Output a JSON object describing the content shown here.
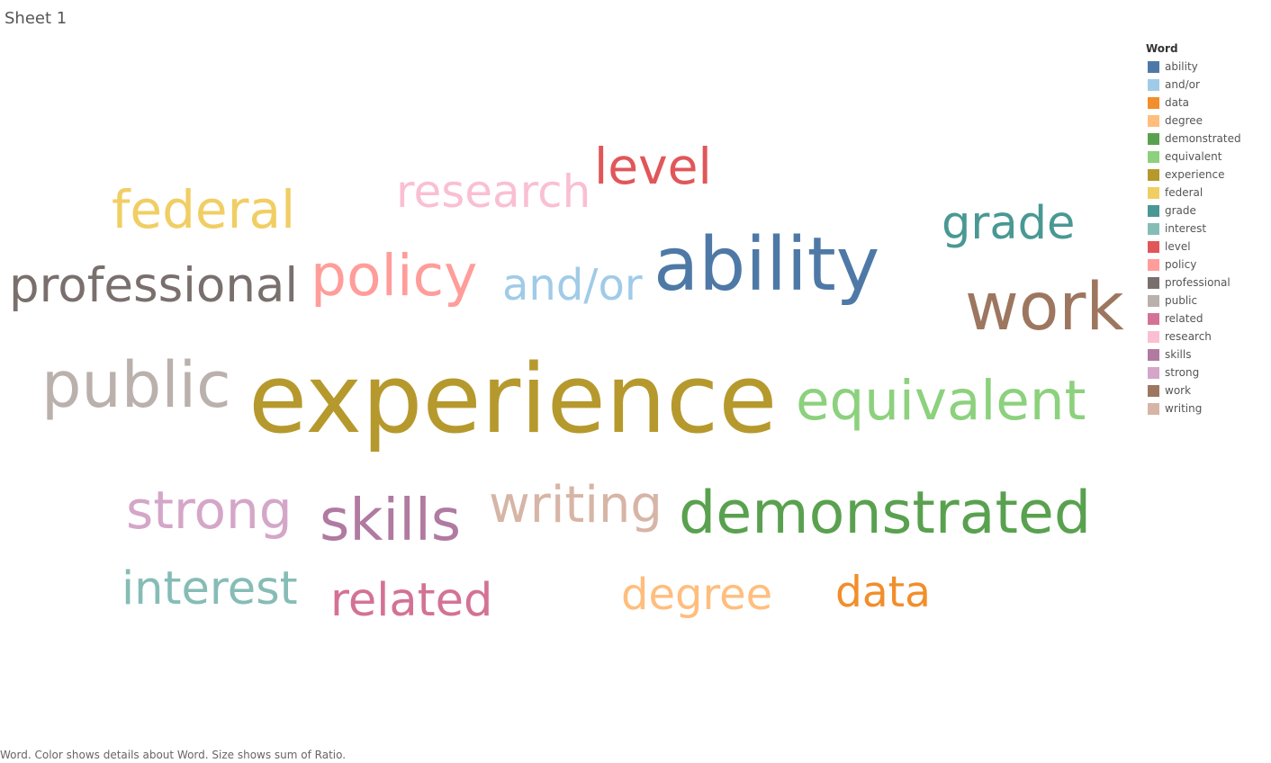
{
  "sheet": {
    "title": "Sheet 1",
    "footer": "Word.  Color shows details about Word.  Size shows sum of Ratio."
  },
  "legend": {
    "title": "Word",
    "items": [
      {
        "label": "ability",
        "color": "#4e79a7"
      },
      {
        "label": "and/or",
        "color": "#a0cbe8"
      },
      {
        "label": "data",
        "color": "#f28e2b"
      },
      {
        "label": "degree",
        "color": "#ffbe7d"
      },
      {
        "label": "demonstrated",
        "color": "#59a14f"
      },
      {
        "label": "equivalent",
        "color": "#8cd17d"
      },
      {
        "label": "experience",
        "color": "#b6992d"
      },
      {
        "label": "federal",
        "color": "#f1ce63"
      },
      {
        "label": "grade",
        "color": "#499894"
      },
      {
        "label": "interest",
        "color": "#86bcb6"
      },
      {
        "label": "level",
        "color": "#e15759"
      },
      {
        "label": "policy",
        "color": "#ff9d9a"
      },
      {
        "label": "professional",
        "color": "#79706e"
      },
      {
        "label": "public",
        "color": "#bab0ac"
      },
      {
        "label": "related",
        "color": "#d37295"
      },
      {
        "label": "research",
        "color": "#fabfd2"
      },
      {
        "label": "skills",
        "color": "#b07aa1"
      },
      {
        "label": "strong",
        "color": "#d4a6c8"
      },
      {
        "label": "work",
        "color": "#9d7660"
      },
      {
        "label": "writing",
        "color": "#d7b5a6"
      }
    ]
  },
  "chart_data": {
    "type": "wordcloud",
    "color_by": "Word",
    "size_by": "sum of Ratio",
    "words": [
      {
        "word": "experience",
        "ratio": 106,
        "color": "#b6992d"
      },
      {
        "word": "ability",
        "ratio": 82,
        "color": "#4e79a7"
      },
      {
        "word": "work",
        "ratio": 73,
        "color": "#9d7660"
      },
      {
        "word": "public",
        "ratio": 70,
        "color": "#bab0ac"
      },
      {
        "word": "demonstrated",
        "ratio": 65,
        "color": "#59a14f"
      },
      {
        "word": "skills",
        "ratio": 64,
        "color": "#b07aa1"
      },
      {
        "word": "policy",
        "ratio": 63,
        "color": "#ff9d9a"
      },
      {
        "word": "equivalent",
        "ratio": 61,
        "color": "#8cd17d"
      },
      {
        "word": "federal",
        "ratio": 58,
        "color": "#f1ce63"
      },
      {
        "word": "strong",
        "ratio": 58,
        "color": "#d4a6c8"
      },
      {
        "word": "writing",
        "ratio": 56,
        "color": "#d7b5a6"
      },
      {
        "word": "level",
        "ratio": 55,
        "color": "#e15759"
      },
      {
        "word": "professional",
        "ratio": 53,
        "color": "#79706e"
      },
      {
        "word": "grade",
        "ratio": 51,
        "color": "#499894"
      },
      {
        "word": "interest",
        "ratio": 51,
        "color": "#86bcb6"
      },
      {
        "word": "related",
        "ratio": 51,
        "color": "#d37295"
      },
      {
        "word": "research",
        "ratio": 50,
        "color": "#fabfd2"
      },
      {
        "word": "and/or",
        "ratio": 48,
        "color": "#a0cbe8"
      },
      {
        "word": "degree",
        "ratio": 48,
        "color": "#ffbe7d"
      },
      {
        "word": "data",
        "ratio": 47,
        "color": "#f28e2b"
      }
    ]
  }
}
